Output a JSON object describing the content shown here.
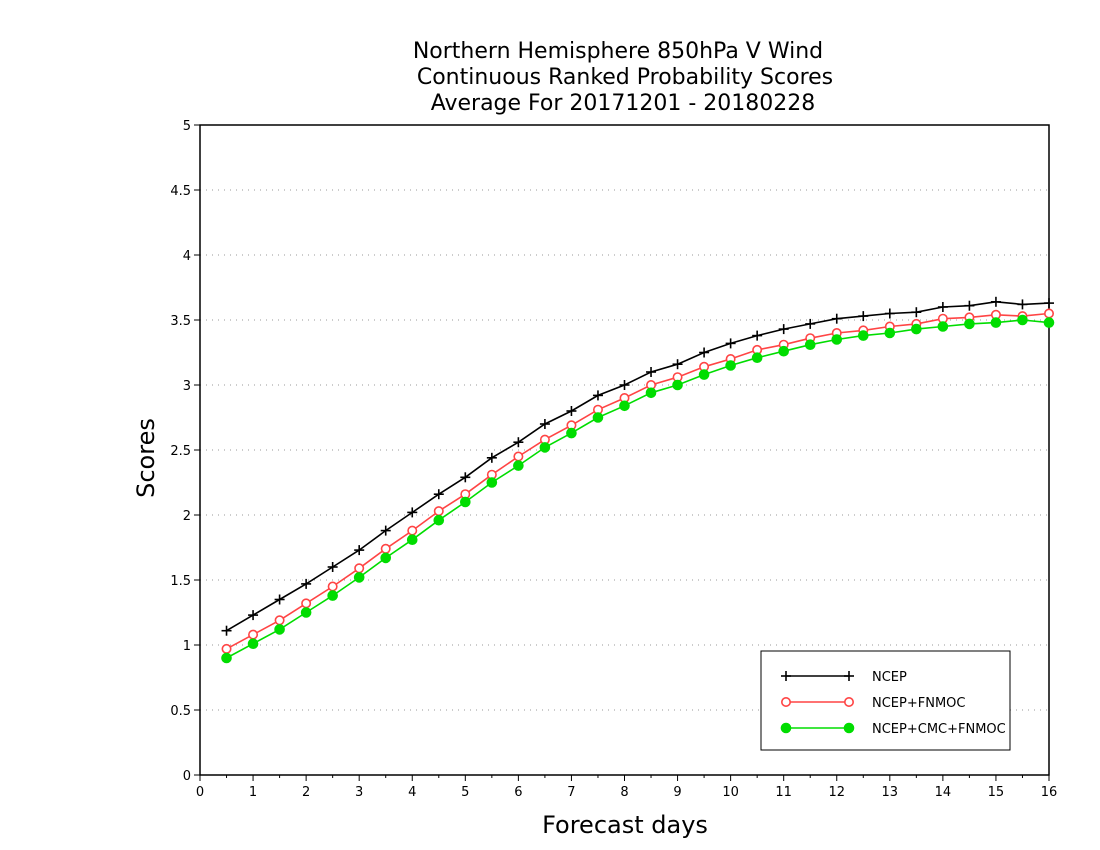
{
  "chart_data": {
    "type": "line",
    "title_lines": [
      "Northern Hemisphere 850hPa V Wind",
      "Continuous Ranked Probability Scores",
      "Average For 20171201 - 20180228"
    ],
    "xlabel": "Forecast days",
    "ylabel": "Scores",
    "xlim": [
      0,
      16
    ],
    "ylim": [
      0,
      5
    ],
    "xticks": [
      "0",
      "1",
      "2",
      "3",
      "4",
      "5",
      "6",
      "7",
      "8",
      "9",
      "10",
      "11",
      "12",
      "13",
      "14",
      "15",
      "16"
    ],
    "yticks": [
      "0",
      "0.5",
      "1",
      "1.5",
      "2",
      "2.5",
      "3",
      "3.5",
      "4",
      "4.5",
      "5"
    ],
    "grid": true,
    "legend_position": "bottom-right",
    "x": [
      0.5,
      1,
      1.5,
      2,
      2.5,
      3,
      3.5,
      4,
      4.5,
      5,
      5.5,
      6,
      6.5,
      7,
      7.5,
      8,
      8.5,
      9,
      9.5,
      10,
      10.5,
      11,
      11.5,
      12,
      12.5,
      13,
      13.5,
      14,
      14.5,
      15,
      15.5,
      16
    ],
    "series": [
      {
        "name": "NCEP",
        "color": "#000000",
        "marker": "plus",
        "values": [
          1.11,
          1.23,
          1.35,
          1.47,
          1.6,
          1.73,
          1.88,
          2.02,
          2.16,
          2.29,
          2.44,
          2.56,
          2.7,
          2.8,
          2.92,
          3.0,
          3.1,
          3.16,
          3.25,
          3.32,
          3.38,
          3.43,
          3.47,
          3.51,
          3.53,
          3.55,
          3.56,
          3.6,
          3.61,
          3.64,
          3.62,
          3.63
        ]
      },
      {
        "name": "NCEP+FNMOC",
        "color": "#ff4444",
        "marker": "open-circle",
        "values": [
          0.97,
          1.08,
          1.19,
          1.32,
          1.45,
          1.59,
          1.74,
          1.88,
          2.03,
          2.16,
          2.31,
          2.45,
          2.58,
          2.69,
          2.81,
          2.9,
          3.0,
          3.06,
          3.14,
          3.2,
          3.27,
          3.31,
          3.36,
          3.4,
          3.42,
          3.45,
          3.47,
          3.51,
          3.52,
          3.54,
          3.53,
          3.55
        ]
      },
      {
        "name": "NCEP+CMC+FNMOC",
        "color": "#00dd00",
        "marker": "filled-circle",
        "values": [
          0.9,
          1.01,
          1.12,
          1.25,
          1.38,
          1.52,
          1.67,
          1.81,
          1.96,
          2.1,
          2.25,
          2.38,
          2.52,
          2.63,
          2.75,
          2.84,
          2.94,
          3.0,
          3.08,
          3.15,
          3.21,
          3.26,
          3.31,
          3.35,
          3.38,
          3.4,
          3.43,
          3.45,
          3.47,
          3.48,
          3.5,
          3.48
        ]
      }
    ]
  }
}
